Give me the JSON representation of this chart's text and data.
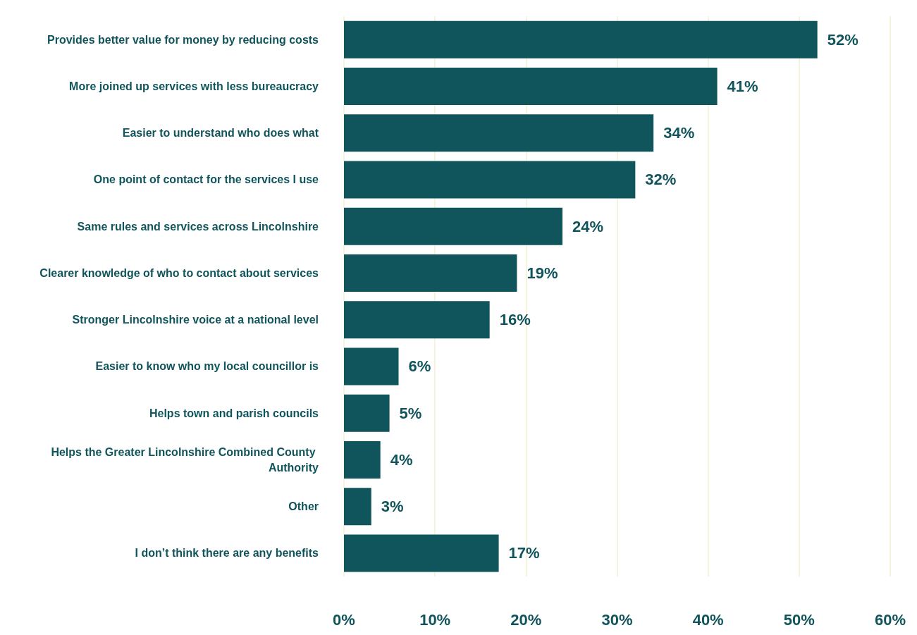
{
  "chart_data": {
    "type": "bar",
    "orientation": "horizontal",
    "categories": [
      "Provides better value for money by reducing costs",
      "More joined up services with less bureaucracy",
      "Easier to understand who does what",
      "One point of contact for the services I use",
      "Same rules and services across Lincolnshire",
      "Clearer knowledge of who to contact about services",
      "Stronger Lincolnshire voice at a national level",
      "Easier to know who my local councillor is",
      "Helps town and parish councils",
      "Helps the Greater Lincolnshire Combined County Authority",
      "Other",
      "I don’t think there are any benefits"
    ],
    "values": [
      52,
      41,
      34,
      32,
      24,
      19,
      16,
      6,
      5,
      4,
      3,
      17
    ],
    "value_labels": [
      "52%",
      "41%",
      "34%",
      "32%",
      "24%",
      "19%",
      "16%",
      "6%",
      "5%",
      "4%",
      "3%",
      "17%"
    ],
    "color": "#10545c",
    "xlim": [
      0,
      60
    ],
    "xticks": [
      {
        "value": 0,
        "label": "0%"
      },
      {
        "value": 10,
        "label": "10%"
      },
      {
        "value": 20,
        "label": "20%"
      },
      {
        "value": 30,
        "label": "30%"
      },
      {
        "value": 40,
        "label": "40%"
      },
      {
        "value": 50,
        "label": "50%"
      },
      {
        "value": 60,
        "label": "60%"
      }
    ],
    "grid": "x"
  }
}
